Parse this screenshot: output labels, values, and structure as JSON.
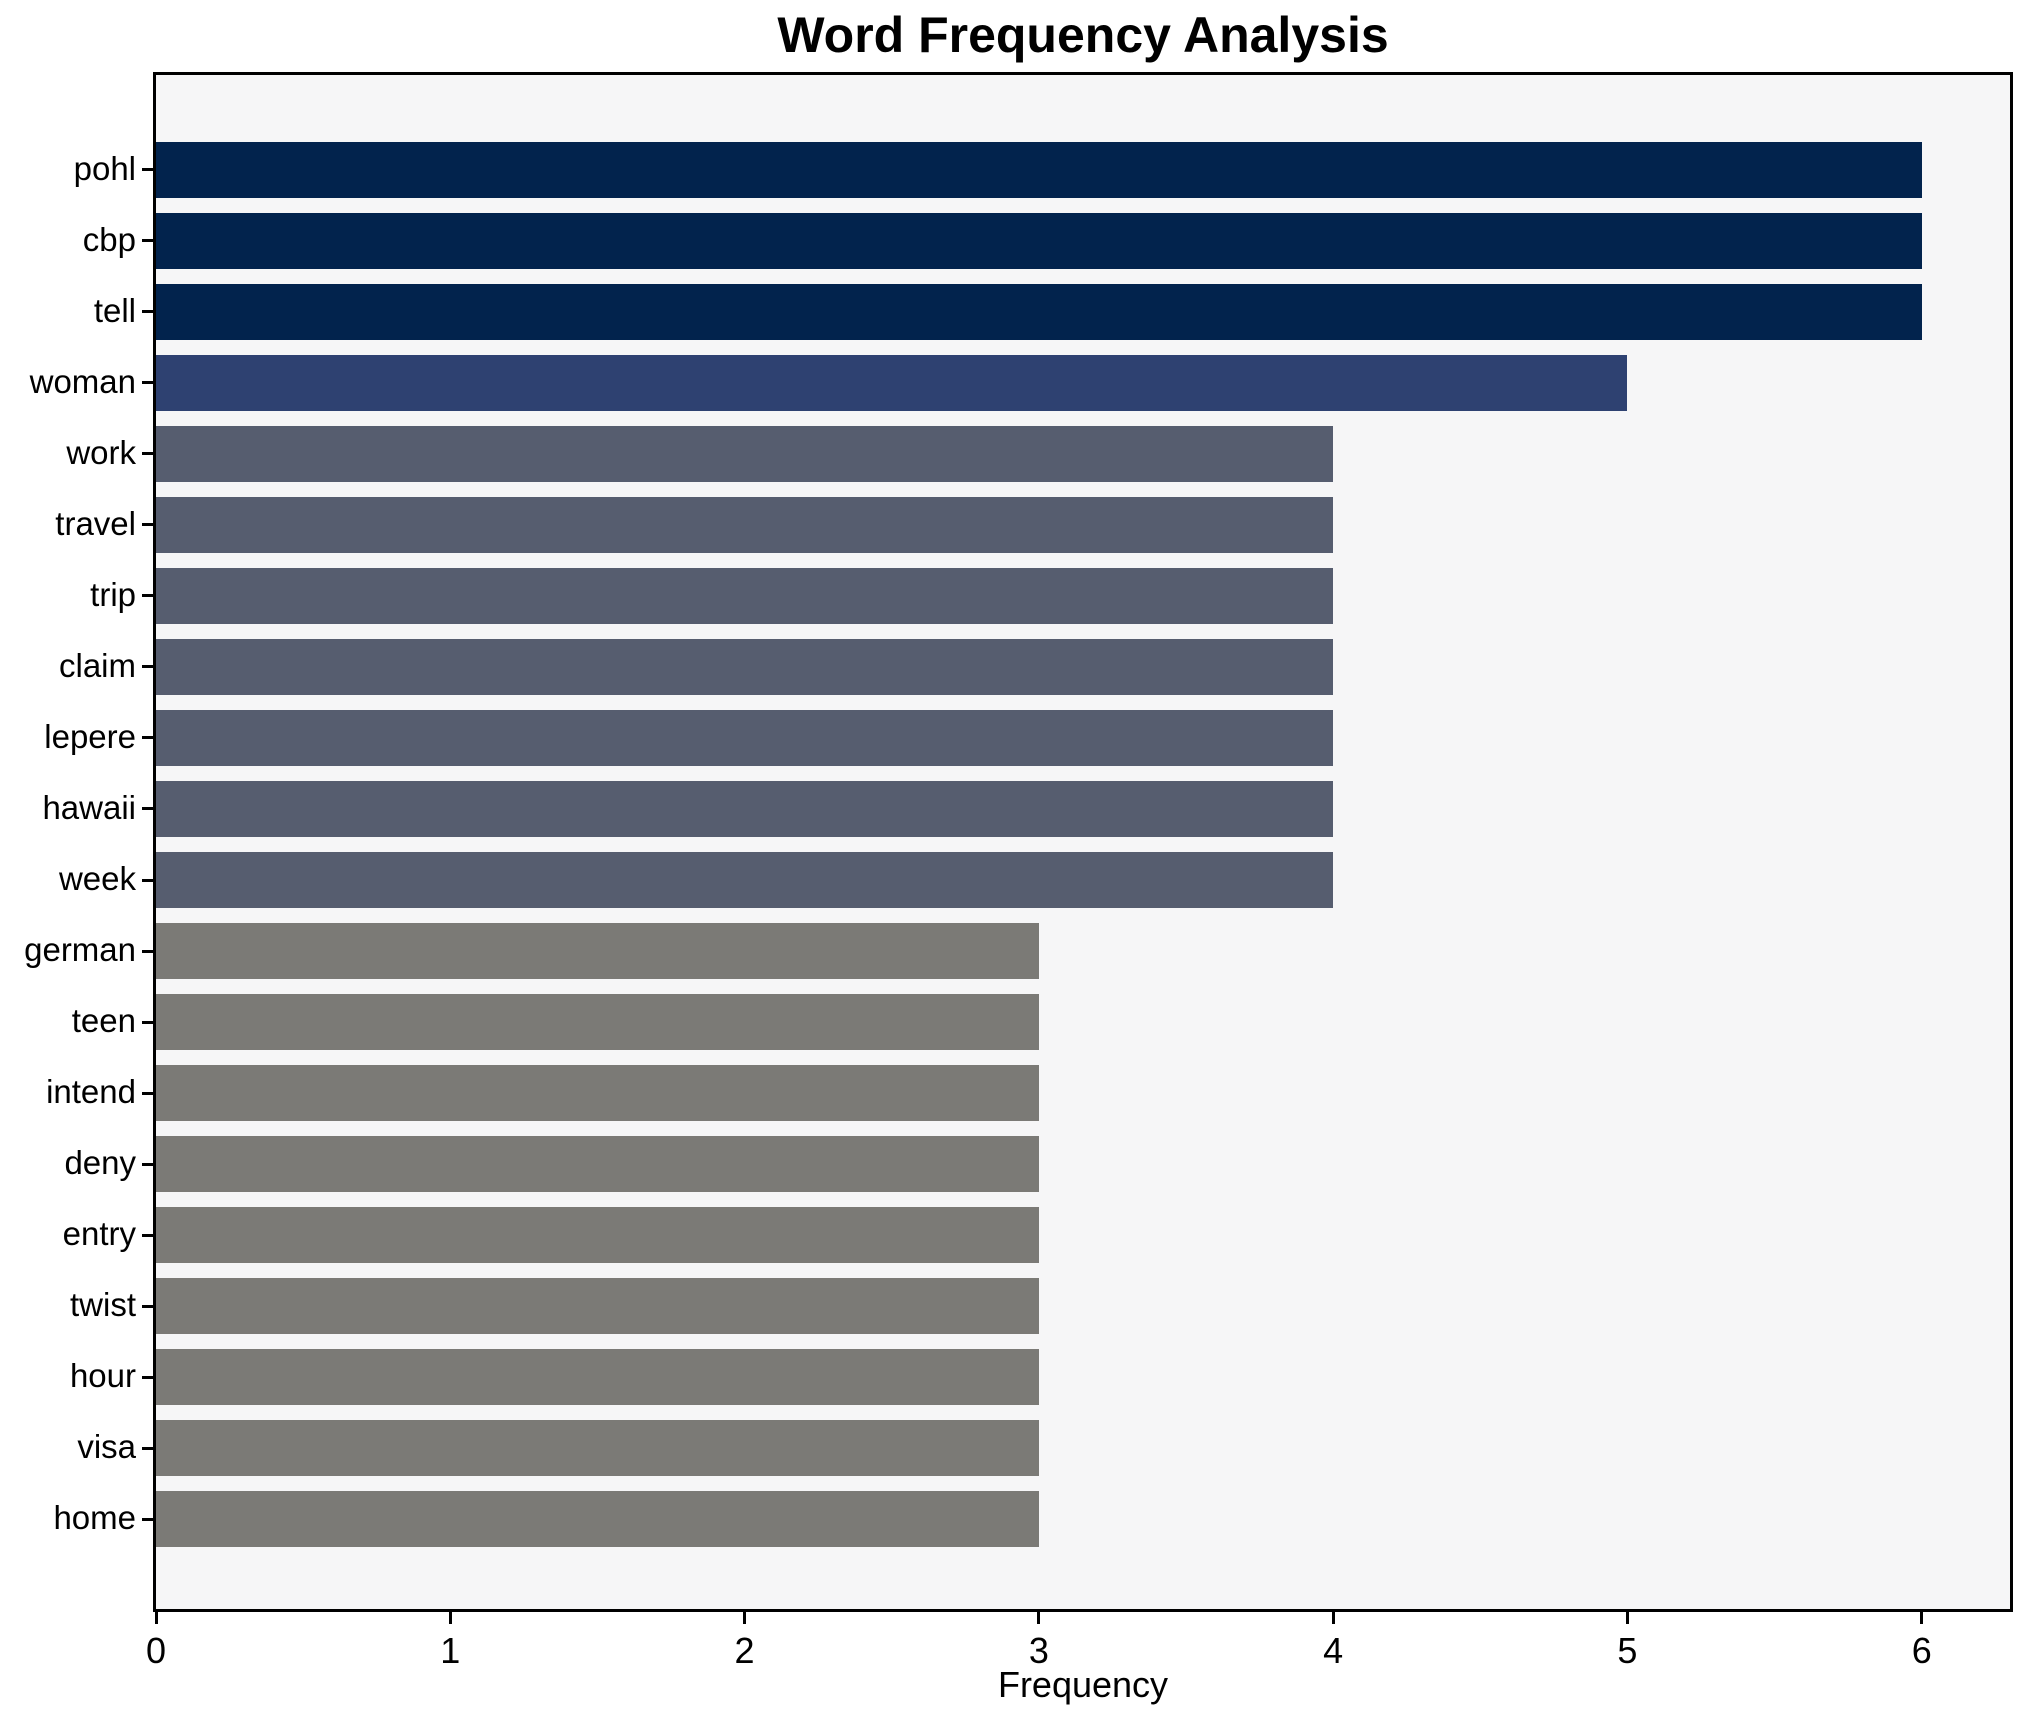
{
  "chart_data": {
    "type": "bar",
    "orientation": "horizontal",
    "title": "Word Frequency Analysis",
    "xlabel": "Frequency",
    "ylabel": "",
    "categories": [
      "pohl",
      "cbp",
      "tell",
      "woman",
      "work",
      "travel",
      "trip",
      "claim",
      "lepere",
      "hawaii",
      "week",
      "german",
      "teen",
      "intend",
      "deny",
      "entry",
      "twist",
      "hour",
      "visa",
      "home"
    ],
    "values": [
      6,
      6,
      6,
      5,
      4,
      4,
      4,
      4,
      4,
      4,
      4,
      3,
      3,
      3,
      3,
      3,
      3,
      3,
      3,
      3
    ],
    "xticks": [
      0,
      1,
      2,
      3,
      4,
      5,
      6
    ],
    "xlim": [
      0,
      6.3
    ],
    "grid": false,
    "legend": false,
    "colors": {
      "by_value": {
        "6": "#02234d",
        "5": "#2e4171",
        "4": "#565d6f",
        "3": "#7b7a76"
      }
    },
    "plot_background": "#f6f6f7",
    "figure_background": "#ffffff",
    "axis_color": "#000000",
    "text_color": "#000000"
  }
}
